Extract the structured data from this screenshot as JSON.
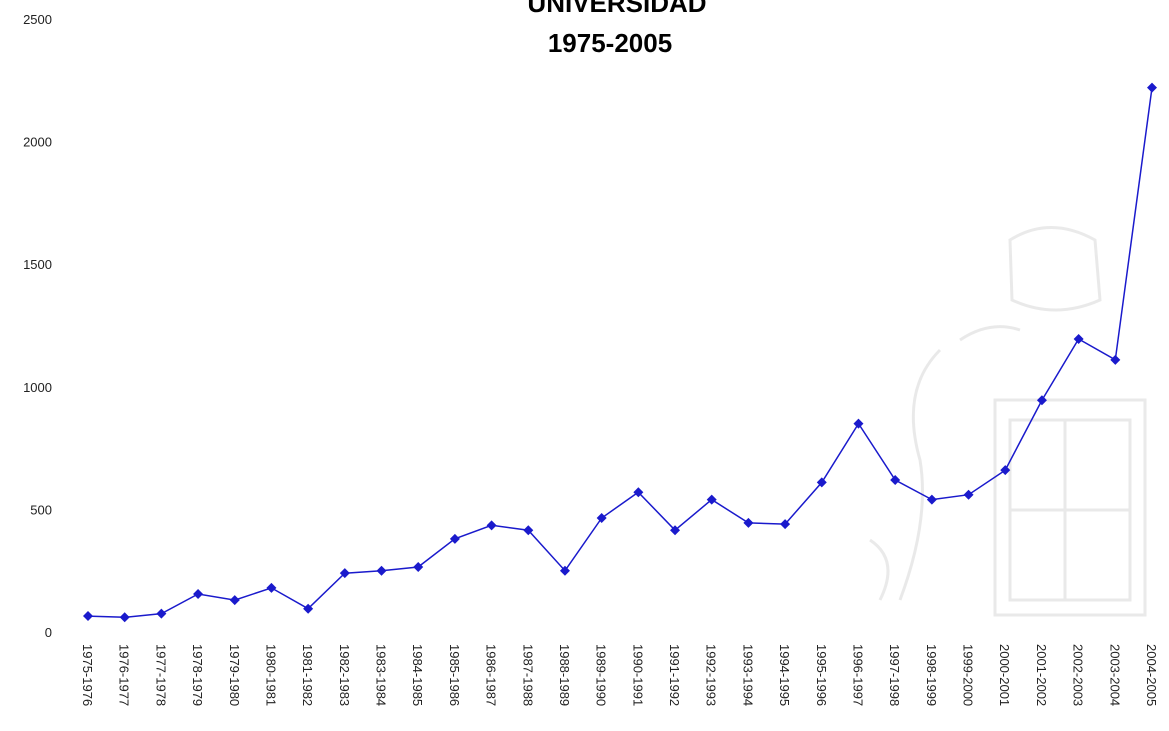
{
  "chart_data": {
    "type": "line",
    "title": "UNIVERSIDAD",
    "subtitle": "1975-2005",
    "xlabel": "",
    "ylabel": "",
    "ylim": [
      0,
      2500
    ],
    "yticks": [
      0,
      500,
      1000,
      1500,
      2000,
      2500
    ],
    "grid": false,
    "legend": "none",
    "categories": [
      "1975-1976",
      "1976-1977",
      "1977-1978",
      "1978-1979",
      "1979-1980",
      "1980-1981",
      "1981-1982",
      "1982-1983",
      "1983-1984",
      "1984-1985",
      "1985-1986",
      "1986-1987",
      "1987-1988",
      "1988-1989",
      "1989-1990",
      "1990-1991",
      "1991-1992",
      "1992-1993",
      "1993-1994",
      "1994-1995",
      "1995-1996",
      "1996-1997",
      "1997-1998",
      "1998-1999",
      "1999-2000",
      "2000-2001",
      "2001-2002",
      "2002-2003",
      "2003-2004",
      "2004-2005"
    ],
    "series": [
      {
        "color": "#1a1acc",
        "values": [
          65,
          60,
          75,
          155,
          130,
          180,
          95,
          240,
          250,
          265,
          380,
          435,
          415,
          250,
          465,
          570,
          415,
          540,
          445,
          440,
          610,
          850,
          620,
          540,
          560,
          660,
          945,
          1195,
          1110,
          2220
        ]
      }
    ]
  }
}
